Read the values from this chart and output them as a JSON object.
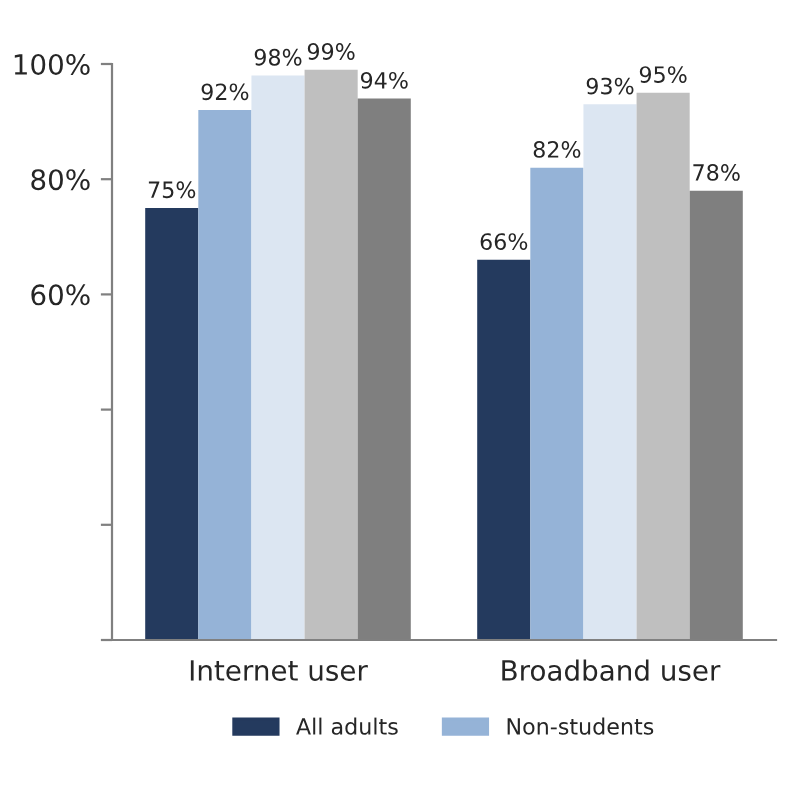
{
  "chart_data": {
    "type": "bar",
    "categories": [
      "Internet user",
      "Broadband user"
    ],
    "series": [
      {
        "name": "All adults",
        "color": "#243a5e",
        "values": [
          75,
          66
        ]
      },
      {
        "name": "Non-students",
        "color": "#95b3d7",
        "values": [
          92,
          82
        ]
      },
      {
        "color": "#dce6f2",
        "values": [
          98,
          93
        ]
      },
      {
        "color": "#bfbfbf",
        "values": [
          99,
          95
        ]
      },
      {
        "color": "#7f7f7f",
        "values": [
          94,
          78
        ]
      }
    ],
    "ylim": [
      0,
      100
    ],
    "yticks": [
      {
        "value": 0,
        "label": null
      },
      {
        "value": 20,
        "label": null
      },
      {
        "value": 40,
        "label": null
      },
      {
        "value": 60,
        "label": "60%"
      },
      {
        "value": 80,
        "label": "80%"
      },
      {
        "value": 100,
        "label": "100%"
      }
    ],
    "value_labels": [
      [
        "75%",
        "66%"
      ],
      [
        "92%",
        "82%"
      ],
      [
        "98%",
        "93%"
      ],
      [
        "99%",
        "95%"
      ],
      [
        "94%",
        "78%"
      ]
    ],
    "grid": false,
    "legend": "bottom"
  }
}
